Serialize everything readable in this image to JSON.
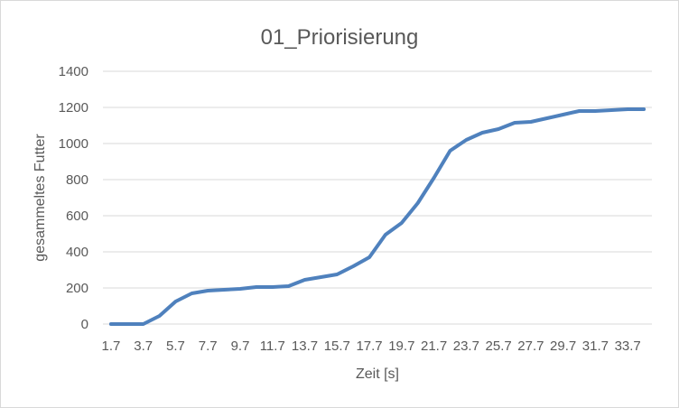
{
  "chart_data": {
    "type": "line",
    "title": "01_Priorisierung",
    "xlabel": "Zeit [s]",
    "ylabel": "gesammeltes Futter",
    "ylim": [
      0,
      1400
    ],
    "yticks": [
      0,
      200,
      400,
      600,
      800,
      1000,
      1200,
      1400
    ],
    "grid": true,
    "legend": "none",
    "line_color": "#4f81bd",
    "x": [
      1.7,
      2.7,
      3.7,
      4.7,
      5.7,
      6.7,
      7.7,
      8.7,
      9.7,
      10.7,
      11.7,
      12.7,
      13.7,
      14.7,
      15.7,
      16.7,
      17.7,
      18.7,
      19.7,
      20.7,
      21.7,
      22.7,
      23.7,
      24.7,
      25.7,
      26.7,
      27.7,
      28.7,
      29.7,
      30.7,
      31.7,
      32.7,
      33.7,
      34.7
    ],
    "xtick_labels": [
      "1.7",
      "3.7",
      "5.7",
      "7.7",
      "9.7",
      "11.7",
      "13.7",
      "15.7",
      "17.7",
      "19.7",
      "21.7",
      "23.7",
      "25.7",
      "27.7",
      "29.7",
      "31.7",
      "33.7"
    ],
    "series": [
      {
        "values": [
          0,
          0,
          0,
          45,
          125,
          170,
          185,
          190,
          195,
          205,
          205,
          210,
          245,
          260,
          275,
          320,
          370,
          495,
          560,
          670,
          810,
          960,
          1020,
          1060,
          1080,
          1115,
          1120,
          1140,
          1160,
          1180,
          1180,
          1185,
          1190,
          1190
        ]
      }
    ]
  }
}
